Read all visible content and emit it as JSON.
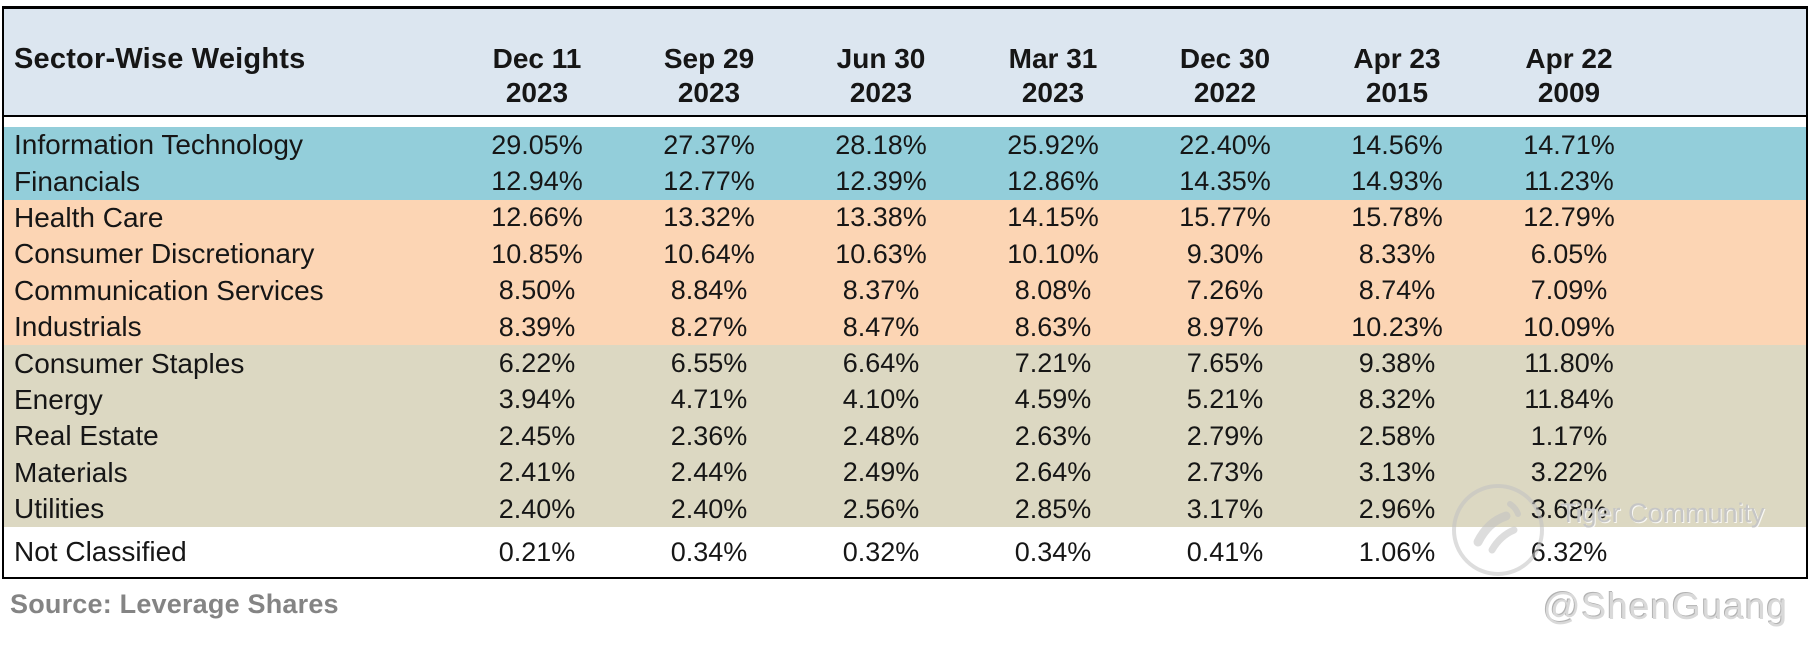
{
  "chart_data": {
    "type": "table",
    "title": "Sector-Wise Weights",
    "columns": [
      [
        "Dec 11",
        "2023"
      ],
      [
        "Sep 29",
        "2023"
      ],
      [
        "Jun 30",
        "2023"
      ],
      [
        "Mar 31",
        "2023"
      ],
      [
        "Dec 30",
        "2022"
      ],
      [
        "Apr 23",
        "2015"
      ],
      [
        "Apr 22",
        "2009"
      ]
    ],
    "rows": [
      {
        "sector": "Information Technology",
        "band": "blue",
        "values": [
          "29.05%",
          "27.37%",
          "28.18%",
          "25.92%",
          "22.40%",
          "14.56%",
          "14.71%"
        ]
      },
      {
        "sector": "Financials",
        "band": "blue",
        "values": [
          "12.94%",
          "12.77%",
          "12.39%",
          "12.86%",
          "14.35%",
          "14.93%",
          "11.23%"
        ]
      },
      {
        "sector": "Health Care",
        "band": "orange",
        "values": [
          "12.66%",
          "13.32%",
          "13.38%",
          "14.15%",
          "15.77%",
          "15.78%",
          "12.79%"
        ]
      },
      {
        "sector": "Consumer Discretionary",
        "band": "orange",
        "values": [
          "10.85%",
          "10.64%",
          "10.63%",
          "10.10%",
          "9.30%",
          "8.33%",
          "6.05%"
        ]
      },
      {
        "sector": "Communication Services",
        "band": "orange",
        "values": [
          "8.50%",
          "8.84%",
          "8.37%",
          "8.08%",
          "7.26%",
          "8.74%",
          "7.09%"
        ]
      },
      {
        "sector": "Industrials",
        "band": "orange",
        "values": [
          "8.39%",
          "8.27%",
          "8.47%",
          "8.63%",
          "8.97%",
          "10.23%",
          "10.09%"
        ]
      },
      {
        "sector": "Consumer Staples",
        "band": "tan",
        "values": [
          "6.22%",
          "6.55%",
          "6.64%",
          "7.21%",
          "7.65%",
          "9.38%",
          "11.80%"
        ]
      },
      {
        "sector": "Energy",
        "band": "tan",
        "values": [
          "3.94%",
          "4.71%",
          "4.10%",
          "4.59%",
          "5.21%",
          "8.32%",
          "11.84%"
        ]
      },
      {
        "sector": "Real Estate",
        "band": "tan",
        "values": [
          "2.45%",
          "2.36%",
          "2.48%",
          "2.63%",
          "2.79%",
          "2.58%",
          "1.17%"
        ]
      },
      {
        "sector": "Materials",
        "band": "tan",
        "values": [
          "2.41%",
          "2.44%",
          "2.49%",
          "2.64%",
          "2.73%",
          "3.13%",
          "3.22%"
        ]
      },
      {
        "sector": "Utilities",
        "band": "tan",
        "values": [
          "2.40%",
          "2.40%",
          "2.56%",
          "2.85%",
          "3.17%",
          "2.96%",
          "3.68%"
        ]
      },
      {
        "sector": "Not Classified",
        "band": "white",
        "values": [
          "0.21%",
          "0.34%",
          "0.32%",
          "0.34%",
          "0.41%",
          "1.06%",
          "6.32%"
        ]
      }
    ]
  },
  "source": "Source: Leverage Shares",
  "watermark": {
    "community": "Tiger Community",
    "user": "@ShenGuang"
  },
  "colors": {
    "header_bg": "#dce6f0",
    "band_blue": "#93ceda",
    "band_orange": "#fcd5b4",
    "band_tan": "#dcd8c2"
  }
}
